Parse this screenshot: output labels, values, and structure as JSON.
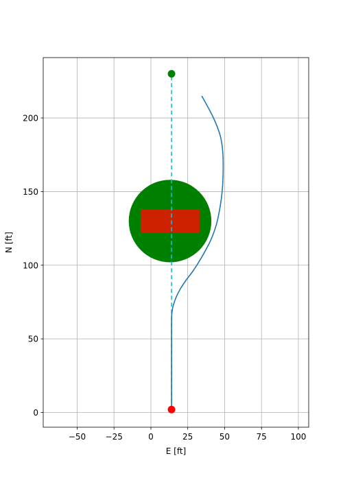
{
  "chart_data": {
    "type": "line",
    "title": "",
    "xlabel": "E [ft]",
    "ylabel": "N [ft]",
    "xlim": [
      -73,
      107
    ],
    "ylim": [
      -10,
      241
    ],
    "xticks": [
      -50,
      -25,
      0,
      25,
      50,
      75,
      100
    ],
    "yticks": [
      0,
      50,
      100,
      150,
      200
    ],
    "grid": true,
    "colors": {
      "trajectory": "#1f77b4",
      "reference_line": "#17becf",
      "start_marker": "#ff0000",
      "goal_marker": "#008000",
      "safe_zone": "#008000",
      "obstacle": "#cc2200"
    },
    "reference_line": {
      "x": [
        14,
        14
      ],
      "y": [
        2,
        230
      ]
    },
    "start_point": {
      "x": 14,
      "y": 2
    },
    "goal_point": {
      "x": 14,
      "y": 230
    },
    "safe_zone": {
      "center_x": 13,
      "center_y": 130,
      "radius_x": 28,
      "radius_y": 28
    },
    "obstacle": {
      "x_min": -7,
      "x_max": 33,
      "y_min": 122,
      "y_max": 138
    },
    "series": [
      {
        "x": [
          14,
          14,
          14,
          14,
          14,
          14.2,
          15,
          17,
          20,
          24,
          28.5,
          33,
          37,
          41,
          44.5,
          47,
          48.5,
          49,
          48.8,
          47.5,
          45,
          41,
          34.5
        ],
        "y": [
          2,
          20,
          40,
          55,
          62,
          67,
          72,
          78,
          84,
          90,
          96,
          103,
          110,
          118,
          128,
          140,
          152,
          164,
          176,
          186,
          194,
          203,
          215
        ]
      }
    ]
  }
}
